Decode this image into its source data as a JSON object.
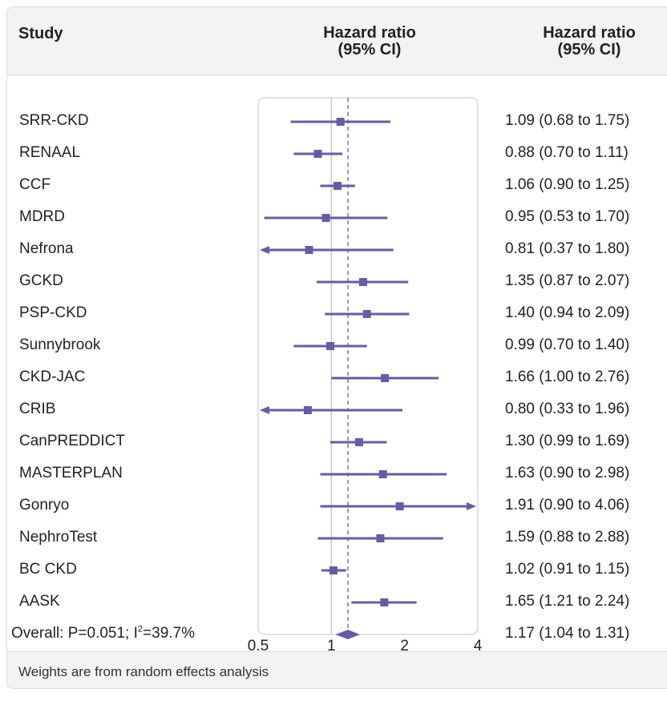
{
  "header": {
    "study_col": "Study",
    "plot_col_line1": "Hazard ratio",
    "plot_col_line2": "(95% CI)",
    "est_col_line1": "Hazard ratio",
    "est_col_line2": "(95% CI)"
  },
  "footer": {
    "note": "Weights are from random effects analysis"
  },
  "colors": {
    "marker": "#6a5aa6",
    "plot_box_border": "#d8d8d8",
    "null_line": "#c8c8c8",
    "header_bg": "#f3f3f3"
  },
  "chart_data": {
    "type": "forest",
    "xlabel": "",
    "x_scale": "log",
    "xlim": [
      0.5,
      4
    ],
    "x_ticks": [
      0.5,
      1,
      2,
      4
    ],
    "x_tick_labels": [
      "0.5",
      "1",
      "2",
      "4"
    ],
    "null_value": 1,
    "pooled_reference": 1.17,
    "studies": [
      {
        "name": "SRR-CKD",
        "hr": 1.09,
        "lo": 0.68,
        "hi": 1.75,
        "label": "1.09 (0.68 to 1.75)"
      },
      {
        "name": "RENAAL",
        "hr": 0.88,
        "lo": 0.7,
        "hi": 1.11,
        "label": "0.88 (0.70 to 1.11)"
      },
      {
        "name": "CCF",
        "hr": 1.06,
        "lo": 0.9,
        "hi": 1.25,
        "label": "1.06 (0.90 to 1.25)"
      },
      {
        "name": "MDRD",
        "hr": 0.95,
        "lo": 0.53,
        "hi": 1.7,
        "label": "0.95 (0.53 to 1.70)"
      },
      {
        "name": "Nefrona",
        "hr": 0.81,
        "lo": 0.37,
        "hi": 1.8,
        "label": "0.81 (0.37 to 1.80)"
      },
      {
        "name": "GCKD",
        "hr": 1.35,
        "lo": 0.87,
        "hi": 2.07,
        "label": "1.35 (0.87 to 2.07)"
      },
      {
        "name": "PSP-CKD",
        "hr": 1.4,
        "lo": 0.94,
        "hi": 2.09,
        "label": "1.40 (0.94 to 2.09)"
      },
      {
        "name": "Sunnybrook",
        "hr": 0.99,
        "lo": 0.7,
        "hi": 1.4,
        "label": "0.99 (0.70 to 1.40)"
      },
      {
        "name": "CKD-JAC",
        "hr": 1.66,
        "lo": 1.0,
        "hi": 2.76,
        "label": "1.66 (1.00 to 2.76)"
      },
      {
        "name": "CRIB",
        "hr": 0.8,
        "lo": 0.33,
        "hi": 1.96,
        "label": "0.80 (0.33 to 1.96)"
      },
      {
        "name": "CanPREDDICT",
        "hr": 1.3,
        "lo": 0.99,
        "hi": 1.69,
        "label": "1.30 (0.99 to 1.69)"
      },
      {
        "name": "MASTERPLAN",
        "hr": 1.63,
        "lo": 0.9,
        "hi": 2.98,
        "label": "1.63 (0.90 to 2.98)"
      },
      {
        "name": "Gonryo",
        "hr": 1.91,
        "lo": 0.9,
        "hi": 4.06,
        "label": "1.91 (0.90 to 4.06)"
      },
      {
        "name": "NephroTest",
        "hr": 1.59,
        "lo": 0.88,
        "hi": 2.88,
        "label": "1.59 (0.88 to 2.88)"
      },
      {
        "name": "BC CKD",
        "hr": 1.02,
        "lo": 0.91,
        "hi": 1.15,
        "label": "1.02 (0.91 to 1.15)"
      },
      {
        "name": "AASK",
        "hr": 1.65,
        "lo": 1.21,
        "hi": 2.24,
        "label": "1.65 (1.21 to 2.24)"
      }
    ],
    "overall": {
      "label_prefix": "Overall: P=0.051; I",
      "label_sup": "2",
      "label_suffix": "=39.7%",
      "hr": 1.17,
      "lo": 1.04,
      "hi": 1.31,
      "est_label": "1.17 (1.04 to 1.31)"
    }
  }
}
